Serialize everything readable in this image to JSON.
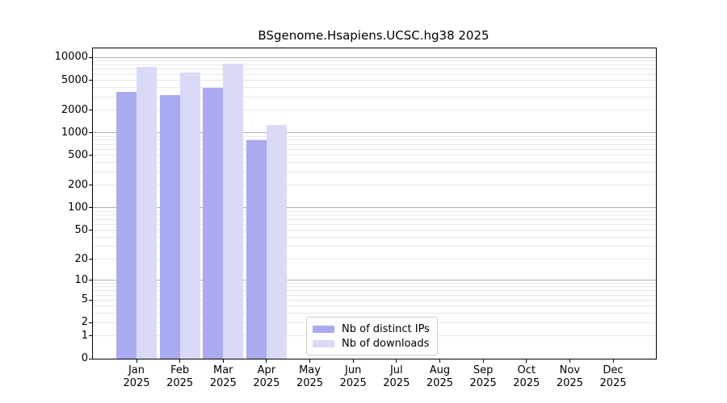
{
  "title": "BSgenome.Hsapiens.UCSC.hg38 2025",
  "chart_data": {
    "type": "bar",
    "title": "BSgenome.Hsapiens.UCSC.hg38 2025",
    "xlabel": "",
    "ylabel": "",
    "yscale": "log1p",
    "ylim": [
      0,
      13000
    ],
    "grid": true,
    "legend_position": "lower-center-inside",
    "categories": [
      "Jan",
      "Feb",
      "Mar",
      "Apr",
      "May",
      "Jun",
      "Jul",
      "Aug",
      "Sep",
      "Oct",
      "Nov",
      "Dec"
    ],
    "year_label": "2025",
    "y_ticks": [
      0,
      1,
      2,
      5,
      10,
      20,
      50,
      100,
      200,
      500,
      1000,
      2000,
      5000,
      10000
    ],
    "series": [
      {
        "name": "Nb of distinct IPs",
        "color": "#aaaaf0",
        "values": [
          3500,
          3200,
          4000,
          800,
          null,
          null,
          null,
          null,
          null,
          null,
          null,
          null
        ]
      },
      {
        "name": "Nb of downloads",
        "color": "#d9d9f8",
        "values": [
          7500,
          6300,
          8300,
          1270,
          null,
          null,
          null,
          null,
          null,
          null,
          null,
          null
        ]
      }
    ],
    "grid_major_color": "#b0b0b0",
    "grid_minor_color": "#e7e7e7"
  }
}
